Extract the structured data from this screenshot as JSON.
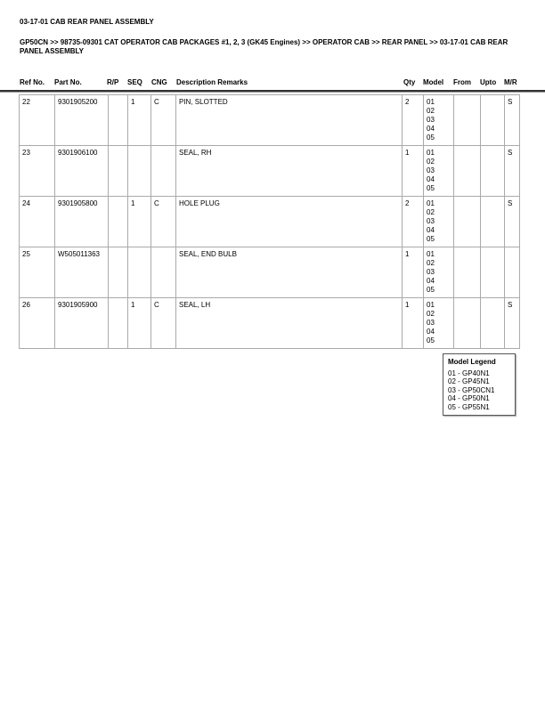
{
  "title": "03-17-01 CAB REAR PANEL ASSEMBLY",
  "breadcrumb": "GP50CN >> 98735-09301 CAT OPERATOR CAB PACKAGES #1, 2, 3 (GK45 Engines) >> OPERATOR CAB >> REAR PANEL >> 03-17-01 CAB REAR PANEL ASSEMBLY",
  "columns": [
    "Ref No.",
    "Part No.",
    "R/P",
    "SEQ",
    "CNG",
    "Description Remarks",
    "Qty",
    "Model",
    "From",
    "Upto",
    "M/R"
  ],
  "rows": [
    {
      "ref": "22",
      "part": "9301905200",
      "rp": "",
      "seq": "1",
      "cng": "C",
      "desc": "PIN, SLOTTED",
      "qty": "2",
      "model": "01\n02\n03\n04\n05",
      "from": "",
      "upto": "",
      "mr": "S"
    },
    {
      "ref": "23",
      "part": "9301906100",
      "rp": "",
      "seq": "",
      "cng": "",
      "desc": "SEAL, RH",
      "qty": "1",
      "model": "01\n02\n03\n04\n05",
      "from": "",
      "upto": "",
      "mr": "S"
    },
    {
      "ref": "24",
      "part": "9301905800",
      "rp": "",
      "seq": "1",
      "cng": "C",
      "desc": "HOLE PLUG",
      "qty": "2",
      "model": "01\n02\n03\n04\n05",
      "from": "",
      "upto": "",
      "mr": "S"
    },
    {
      "ref": "25",
      "part": "W505011363",
      "rp": "",
      "seq": "",
      "cng": "",
      "desc": "SEAL, END BULB",
      "qty": "1",
      "model": "01\n02\n03\n04\n05",
      "from": "",
      "upto": "",
      "mr": ""
    },
    {
      "ref": "26",
      "part": "9301905900",
      "rp": "",
      "seq": "1",
      "cng": "C",
      "desc": "SEAL, LH",
      "qty": "1",
      "model": "01\n02\n03\n04\n05",
      "from": "",
      "upto": "",
      "mr": "S"
    }
  ],
  "legend": {
    "title": "Model Legend",
    "items": [
      "01 - GP40N1",
      "02 - GP45N1",
      "03 - GP50CN1",
      "04 - GP50N1",
      "05 - GP55N1"
    ]
  }
}
